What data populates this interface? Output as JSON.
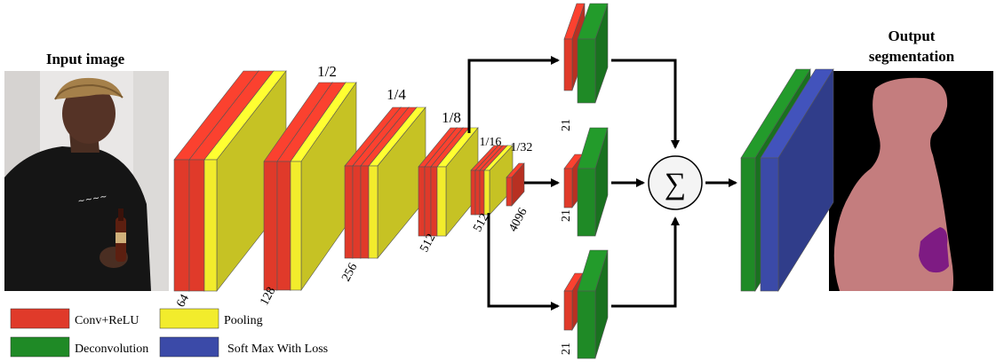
{
  "titles": {
    "input": "Input image",
    "output_line1": "Output",
    "output_line2": "segmentation"
  },
  "scale_labels": [
    "1/2",
    "1/4",
    "1/8",
    "1/16",
    "1/32"
  ],
  "channel_labels": [
    "64",
    "128",
    "256",
    "512",
    "512",
    "4096"
  ],
  "branch_labels": [
    "21",
    "21",
    "21"
  ],
  "sum_symbol": "∑",
  "legend": [
    {
      "label": "Conv+ReLU",
      "color": "#e03a2a"
    },
    {
      "label": "Pooling",
      "color": "#f2ec2c"
    },
    {
      "label": "Deconvolution",
      "color": "#1f8a26"
    },
    {
      "label": "Soft Max With Loss",
      "color": "#3b4aa8"
    }
  ],
  "colors": {
    "conv": "#e03a2a",
    "pool": "#f2ec2c",
    "deconv": "#1f8a26",
    "softmax": "#3b4aa8",
    "mask_person": "#c47d7e",
    "mask_bottle": "#7e1b83"
  },
  "icons": {
    "input_photo": "person-photo",
    "output_mask": "segmentation-mask",
    "sum": "summation-node"
  }
}
